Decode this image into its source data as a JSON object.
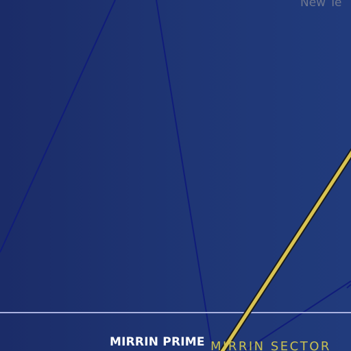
{
  "labels": {
    "top_right_system": "New Te",
    "system_name": "MIRRIN PRIME",
    "sector_name": "MIRRIN SECTOR"
  },
  "colors": {
    "background": "#1f3575",
    "hyperlane": "#101c7a",
    "route": "#d8c352",
    "route_outline": "#1a1a1a",
    "sector_border": "#aab2e0",
    "sector_label": "#c9c152",
    "system_label": "#ffffff",
    "faded_label": "#6f7890"
  },
  "icons": {
    "route": "travel-route-line",
    "hyperlane": "hyperlane-line"
  }
}
